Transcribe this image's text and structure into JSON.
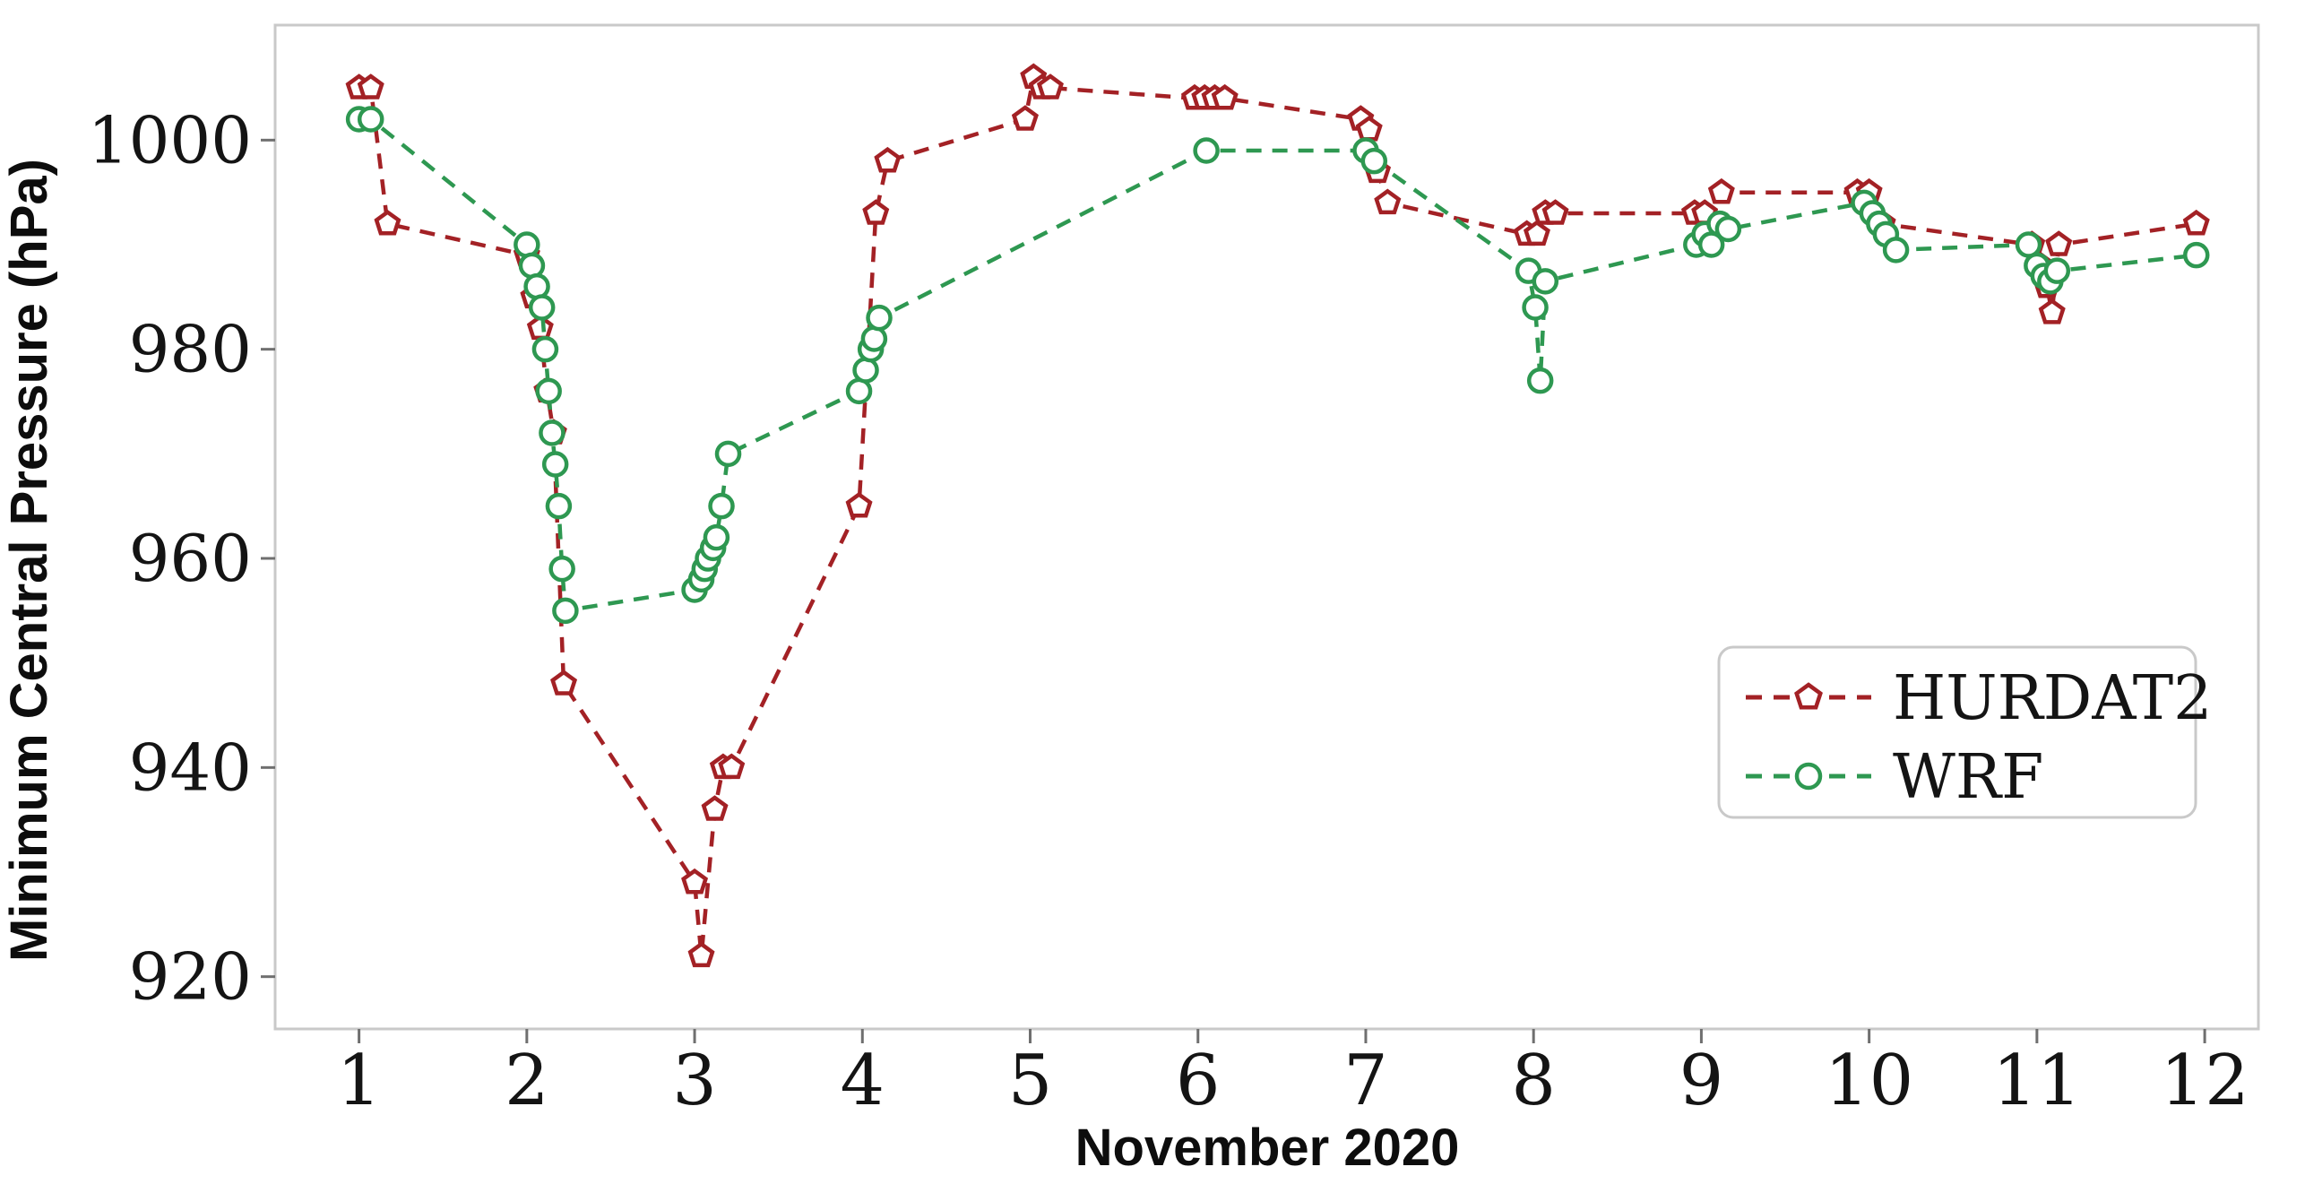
{
  "chart_data": {
    "type": "line",
    "title": "",
    "xlabel": "November 2020",
    "ylabel": "Minimum Central Pressure (hPa)",
    "xlim": [
      0.5,
      12.32
    ],
    "ylim": [
      915,
      1011
    ],
    "x_ticks": [
      1,
      2,
      3,
      4,
      5,
      6,
      7,
      8,
      9,
      10,
      11,
      12
    ],
    "y_ticks": [
      920,
      940,
      960,
      980,
      1000
    ],
    "grid": false,
    "legend_position": "center-right",
    "line_style": "dashed",
    "series": [
      {
        "name": "HURDAT2",
        "color": "#a32125",
        "marker": "pentagon",
        "points": [
          [
            1.0,
            1005
          ],
          [
            1.07,
            1005
          ],
          [
            1.17,
            992
          ],
          [
            2.0,
            989
          ],
          [
            2.04,
            985
          ],
          [
            2.08,
            982
          ],
          [
            2.12,
            976
          ],
          [
            2.16,
            972
          ],
          [
            2.22,
            948
          ],
          [
            3.0,
            929
          ],
          [
            3.04,
            922
          ],
          [
            3.12,
            936
          ],
          [
            3.17,
            940
          ],
          [
            3.22,
            940
          ],
          [
            3.98,
            965
          ],
          [
            4.08,
            993
          ],
          [
            4.15,
            998
          ],
          [
            4.97,
            1002
          ],
          [
            5.02,
            1006
          ],
          [
            5.07,
            1005
          ],
          [
            5.12,
            1005
          ],
          [
            5.98,
            1004
          ],
          [
            6.04,
            1004
          ],
          [
            6.1,
            1004
          ],
          [
            6.16,
            1004
          ],
          [
            6.97,
            1002
          ],
          [
            7.02,
            1001
          ],
          [
            7.07,
            997
          ],
          [
            7.13,
            994
          ],
          [
            7.96,
            991
          ],
          [
            8.02,
            991
          ],
          [
            8.07,
            993
          ],
          [
            8.13,
            993
          ],
          [
            8.96,
            993
          ],
          [
            9.02,
            993
          ],
          [
            9.12,
            995
          ],
          [
            9.93,
            995
          ],
          [
            10.0,
            995
          ],
          [
            10.08,
            992
          ],
          [
            10.97,
            990
          ],
          [
            11.02,
            988
          ],
          [
            11.06,
            986
          ],
          [
            11.09,
            983.5
          ],
          [
            11.13,
            990
          ],
          [
            11.95,
            992
          ]
        ]
      },
      {
        "name": "WRF",
        "color": "#2e9851",
        "marker": "circle",
        "points": [
          [
            1.0,
            1002
          ],
          [
            1.07,
            1002
          ],
          [
            2.0,
            990
          ],
          [
            2.03,
            988
          ],
          [
            2.06,
            986
          ],
          [
            2.09,
            984
          ],
          [
            2.11,
            980
          ],
          [
            2.13,
            976
          ],
          [
            2.15,
            972
          ],
          [
            2.17,
            969
          ],
          [
            2.19,
            965
          ],
          [
            2.21,
            959
          ],
          [
            2.23,
            955
          ],
          [
            3.0,
            957
          ],
          [
            3.04,
            958
          ],
          [
            3.06,
            959
          ],
          [
            3.08,
            960
          ],
          [
            3.11,
            961
          ],
          [
            3.13,
            962
          ],
          [
            3.16,
            965
          ],
          [
            3.2,
            970
          ],
          [
            3.98,
            976
          ],
          [
            4.02,
            978
          ],
          [
            4.05,
            980
          ],
          [
            4.07,
            981
          ],
          [
            4.1,
            983
          ],
          [
            6.05,
            999
          ],
          [
            7.0,
            999
          ],
          [
            7.05,
            998
          ],
          [
            7.97,
            987.5
          ],
          [
            8.01,
            984
          ],
          [
            8.04,
            977
          ],
          [
            8.07,
            986.5
          ],
          [
            8.97,
            990
          ],
          [
            9.02,
            991
          ],
          [
            9.06,
            990
          ],
          [
            9.11,
            992
          ],
          [
            9.16,
            991.5
          ],
          [
            9.97,
            994
          ],
          [
            10.02,
            993
          ],
          [
            10.06,
            992
          ],
          [
            10.1,
            991
          ],
          [
            10.16,
            989.5
          ],
          [
            10.95,
            990
          ],
          [
            11.0,
            988
          ],
          [
            11.04,
            987
          ],
          [
            11.08,
            986.5
          ],
          [
            11.12,
            987.5
          ],
          [
            11.95,
            989
          ]
        ]
      }
    ]
  }
}
